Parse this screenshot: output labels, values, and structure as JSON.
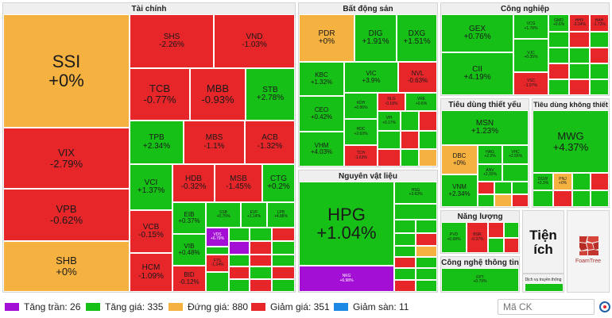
{
  "sectors": {
    "tai_chinh": "Tài chính",
    "bat_dong_san": "Bất động sản",
    "cong_nghiep": "Công nghiệp",
    "nguyen_vat_lieu": "Nguyên vật liệu",
    "tieu_dung_thiet_yeu": "Tiêu dùng thiết yếu",
    "tieu_dung_khong_thiet_yeu": "Tiêu dùng không thiết yếu",
    "nang_luong": "Năng lượng",
    "cong_nghe": "Công nghệ thông tin",
    "tien_ich": "Tiện ích",
    "dich_vu": "Dịch vụ truyền thông"
  },
  "tiles": {
    "SSI": {
      "sym": "SSI",
      "chg": "+0%"
    },
    "VIX": {
      "sym": "VIX",
      "chg": "-2.79%"
    },
    "VPB": {
      "sym": "VPB",
      "chg": "-0.62%"
    },
    "SHB": {
      "sym": "SHB",
      "chg": "+0%"
    },
    "SHS": {
      "sym": "SHS",
      "chg": "-2.26%"
    },
    "VND": {
      "sym": "VND",
      "chg": "-1.03%"
    },
    "TCB": {
      "sym": "TCB",
      "chg": "-0.77%"
    },
    "MBB": {
      "sym": "MBB",
      "chg": "-0.93%"
    },
    "STB": {
      "sym": "STB",
      "chg": "+2.78%"
    },
    "TPB": {
      "sym": "TPB",
      "chg": "+2.34%"
    },
    "MBS": {
      "sym": "MBS",
      "chg": "-1.1%"
    },
    "ACB": {
      "sym": "ACB",
      "chg": "-1.32%"
    },
    "VCI": {
      "sym": "VCI",
      "chg": "+1.37%"
    },
    "HDB": {
      "sym": "HDB",
      "chg": "-0.32%"
    },
    "MSB": {
      "sym": "MSB",
      "chg": "-1.45%"
    },
    "CTG": {
      "sym": "CTG",
      "chg": "+0.2%"
    },
    "VCB": {
      "sym": "VCB",
      "chg": "-0.15%"
    },
    "EIB": {
      "sym": "EIB",
      "chg": "+0.37%"
    },
    "VIB": {
      "sym": "VIB",
      "chg": "+0.48%"
    },
    "HCM": {
      "sym": "HCM",
      "chg": "-1.09%"
    },
    "BID": {
      "sym": "BID",
      "chg": "-0.12%"
    },
    "SSB": {
      "sym": "SSB",
      "chg": "+0.75%"
    },
    "EVF": {
      "sym": "EVF",
      "chg": "+1.14%"
    },
    "LPB": {
      "sym": "LPB",
      "chg": "+4.88%"
    },
    "VDS": {
      "sym": "VDS",
      "chg": "+6.79%"
    },
    "FTS": {
      "sym": "FTS",
      "chg": "-1.34%"
    },
    "PDR": {
      "sym": "PDR",
      "chg": "+0%"
    },
    "DIG": {
      "sym": "DIG",
      "chg": "+1.91%"
    },
    "DXG": {
      "sym": "DXG",
      "chg": "+1.51%"
    },
    "KBC": {
      "sym": "KBC",
      "chg": "+1.32%"
    },
    "VIC": {
      "sym": "VIC",
      "chg": "+3.9%"
    },
    "NVL": {
      "sym": "NVL",
      "chg": "-0.63%"
    },
    "CEO": {
      "sym": "CEO",
      "chg": "+0.42%"
    },
    "KDH": {
      "sym": "KDH",
      "chg": "+0.86%"
    },
    "NLG": {
      "sym": "NLG",
      "chg": "-0.18%"
    },
    "VRE": {
      "sym": "VRE",
      "chg": "+0.6%"
    },
    "HDC": {
      "sym": "HDC",
      "chg": "+2.63%"
    },
    "VPI": {
      "sym": "VPI",
      "chg": "+0.17%"
    },
    "VHM": {
      "sym": "VHM",
      "chg": "+4.03%"
    },
    "TCH": {
      "sym": "TCH",
      "chg": "-1.63%"
    },
    "GEX": {
      "sym": "GEX",
      "chg": "+0.76%"
    },
    "VCG": {
      "sym": "VCG",
      "chg": "+1.78%"
    },
    "GMD": {
      "sym": "GMD",
      "chg": "+0.6%"
    },
    "HHV": {
      "sym": "HHV",
      "chg": "-0.34%"
    },
    "HAH": {
      "sym": "HAH",
      "chg": "-1.73%"
    },
    "CII": {
      "sym": "CII",
      "chg": "+4.19%"
    },
    "VJC": {
      "sym": "VJC",
      "chg": "+0.35%"
    },
    "VSC": {
      "sym": "VSC",
      "chg": "-1.97%"
    },
    "HPG": {
      "sym": "HPG",
      "chg": "+1.04%"
    },
    "NKG": {
      "sym": "NKG",
      "chg": "+6.98%"
    },
    "HSG": {
      "sym": "HSG",
      "chg": "+3.63%"
    },
    "MSN": {
      "sym": "MSN",
      "chg": "+1.23%"
    },
    "DBC": {
      "sym": "DBC",
      "chg": "+0%"
    },
    "HAG": {
      "sym": "HAG",
      "chg": "+2.2%"
    },
    "VHC": {
      "sym": "VHC",
      "chg": "+2.55%"
    },
    "VNM": {
      "sym": "VNM",
      "chg": "+2.34%"
    },
    "ANV": {
      "sym": "ANV",
      "chg": "+2.33%"
    },
    "MWG": {
      "sym": "MWG",
      "chg": "+4.37%"
    },
    "DGW": {
      "sym": "DGW",
      "chg": "+2.3%"
    },
    "PNJ": {
      "sym": "PNJ",
      "chg": "+0%"
    },
    "PVD": {
      "sym": "PVD",
      "chg": "+0.68%"
    },
    "BSR": {
      "sym": "BSR",
      "chg": "-0.37%"
    },
    "FPT": {
      "sym": "FPT",
      "chg": "+0.79%"
    }
  },
  "tien_ich_label_1": "Tiện",
  "tien_ich_label_2": "ích",
  "foamtree_label": "FoamTree",
  "legend": {
    "tran": "Tăng trần: 26",
    "tang": "Tăng giá: 335",
    "dung": "Đứng giá: 880",
    "giam": "Giảm giá: 351",
    "san": "Giảm sàn: 11"
  },
  "search": {
    "placeholder": "Mã CK"
  },
  "colors": {
    "up": "#17c017",
    "down": "#e7262a",
    "flat": "#f5b240",
    "ceiling": "#a40fd6",
    "floor": "#1e88e5"
  }
}
